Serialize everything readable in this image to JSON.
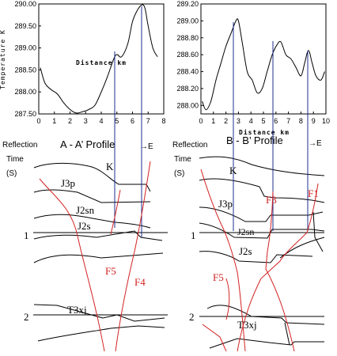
{
  "colors": {
    "curve": "#000000",
    "guide": "#1c2f8e",
    "fault": "#d42222",
    "horizon": "#000000"
  },
  "chart_data": [
    {
      "type": "line",
      "xlabel": "Distance km",
      "ylabel": "Temperature K",
      "xlim": [
        0,
        8
      ],
      "ylim": [
        287.5,
        290.0
      ],
      "xticks": [
        "0",
        "1",
        "2",
        "3",
        "4",
        "5",
        "6",
        "7",
        "8"
      ],
      "yticks": [
        "287.50",
        "288.00",
        "288.50",
        "289.00",
        "289.50",
        "290.00"
      ],
      "x": [
        0.1,
        0.4,
        0.8,
        1.2,
        1.6,
        2.0,
        2.4,
        2.8,
        3.2,
        3.6,
        4.0,
        4.4,
        4.8,
        5.0,
        5.3,
        5.7,
        6.0,
        6.3,
        6.6,
        6.8,
        7.0,
        7.3,
        7.6
      ],
      "y": [
        288.55,
        288.2,
        288.05,
        287.95,
        287.75,
        287.6,
        287.52,
        287.55,
        287.6,
        287.7,
        288.0,
        288.35,
        288.75,
        288.85,
        288.8,
        289.1,
        289.6,
        289.85,
        289.98,
        289.9,
        289.5,
        289.0,
        288.8
      ]
    },
    {
      "type": "line",
      "xlabel": "Distance km",
      "ylabel": "",
      "xlim": [
        0,
        10
      ],
      "ylim": [
        287.9,
        289.2
      ],
      "xticks": [
        "0",
        "1",
        "2",
        "3",
        "4",
        "5",
        "6",
        "7",
        "8",
        "9",
        "10"
      ],
      "yticks": [
        "288.00",
        "288.20",
        "288.40",
        "288.60",
        "288.80",
        "289.00",
        "289.20"
      ],
      "x": [
        0.1,
        0.4,
        0.8,
        1.2,
        1.6,
        2.0,
        2.4,
        2.8,
        3.0,
        3.3,
        3.7,
        4.1,
        4.5,
        4.9,
        5.3,
        5.7,
        6.1,
        6.4,
        6.8,
        7.2,
        7.6,
        8.0,
        8.3,
        8.6,
        8.9,
        9.2,
        9.6,
        9.9
      ],
      "y": [
        288.05,
        287.95,
        288.05,
        288.3,
        288.5,
        288.7,
        288.85,
        289.0,
        289.0,
        288.75,
        288.4,
        288.3,
        288.15,
        288.2,
        288.4,
        288.6,
        288.72,
        288.75,
        288.6,
        288.55,
        288.45,
        288.35,
        288.5,
        288.65,
        288.5,
        288.35,
        288.3,
        288.4
      ]
    }
  ],
  "profiles": {
    "left": {
      "title": "A - A’ Profile",
      "reflection": "Reflection",
      "time": "Time",
      "unit": "(S)",
      "arrow": "→E",
      "t1": "1",
      "t2": "2",
      "layers": [
        "K",
        "J3p",
        "J2sn",
        "J2s",
        "T3xj"
      ],
      "faults": [
        "F5",
        "F4"
      ]
    },
    "right": {
      "title": "B - B’ Profile",
      "reflection": "Reflection",
      "time": "Time",
      "unit": "(S)",
      "arrow": "→E",
      "t1": "1",
      "t2": "2",
      "layers": [
        "K",
        "J3p",
        "J2sn",
        "J2s",
        "T3xj"
      ],
      "faults": [
        "F3",
        "F1",
        "F5"
      ]
    }
  }
}
